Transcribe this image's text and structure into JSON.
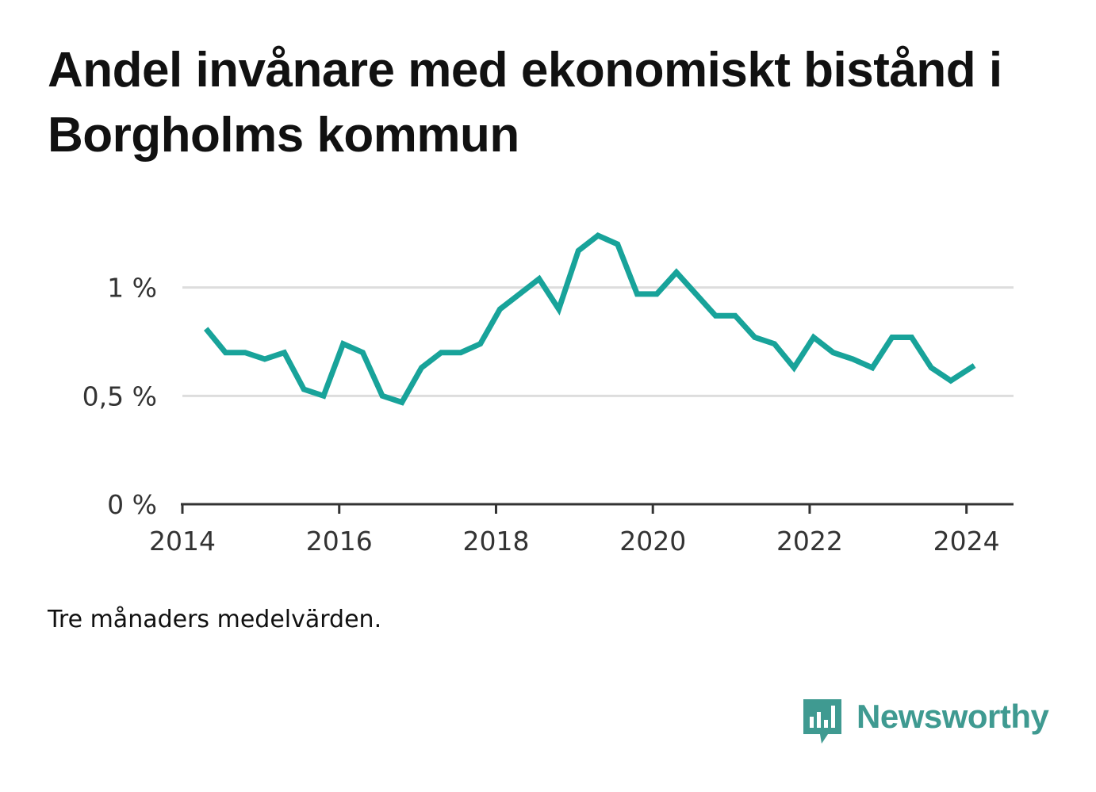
{
  "title": "Andel invånare med ekonomiskt bistånd i Borgholms kommun",
  "note": "Tre månaders medelvärden.",
  "brand": {
    "name": "Newsworthy",
    "color": "#3f9a91",
    "icon": "bar-chart-speech-bubble-icon"
  },
  "colors": {
    "line": "#18a39a",
    "grid": "#dddddd",
    "axis": "#333333"
  },
  "chart_data": {
    "type": "line",
    "title": "Andel invånare med ekonomiskt bistånd i Borgholms kommun",
    "xlabel": "",
    "ylabel": "",
    "xlim": [
      2014.0,
      2024.6
    ],
    "ylim": [
      0,
      1.2
    ],
    "x_ticks": [
      2014,
      2016,
      2018,
      2020,
      2022,
      2024
    ],
    "x_tick_labels": [
      "2014",
      "2016",
      "2018",
      "2020",
      "2022",
      "2024"
    ],
    "y_ticks": [
      0,
      0.5,
      1
    ],
    "y_tick_labels": [
      "0 %",
      "0,5 %",
      "1 %"
    ],
    "grid": "horizontal",
    "series": [
      {
        "x": [
          2014.3,
          2014.55,
          2014.8,
          2015.05,
          2015.3,
          2015.55,
          2015.8,
          2016.05,
          2016.3,
          2016.55,
          2016.8,
          2017.05,
          2017.3,
          2017.55,
          2017.8,
          2018.05,
          2018.3,
          2018.55,
          2018.8,
          2019.05,
          2019.3,
          2019.55,
          2019.8,
          2020.05,
          2020.3,
          2020.55,
          2020.8,
          2021.05,
          2021.3,
          2021.55,
          2021.8,
          2022.05,
          2022.3,
          2022.55,
          2022.8,
          2023.05,
          2023.3,
          2023.55,
          2023.8,
          2024.1
        ],
        "values": [
          0.81,
          0.7,
          0.7,
          0.67,
          0.7,
          0.53,
          0.5,
          0.74,
          0.7,
          0.5,
          0.47,
          0.63,
          0.7,
          0.7,
          0.74,
          0.9,
          0.97,
          1.04,
          0.9,
          1.17,
          1.24,
          1.2,
          0.97,
          0.97,
          1.07,
          0.97,
          0.87,
          0.87,
          0.77,
          0.74,
          0.63,
          0.77,
          0.7,
          0.67,
          0.63,
          0.77,
          0.77,
          0.63,
          0.57,
          0.64
        ]
      }
    ]
  }
}
